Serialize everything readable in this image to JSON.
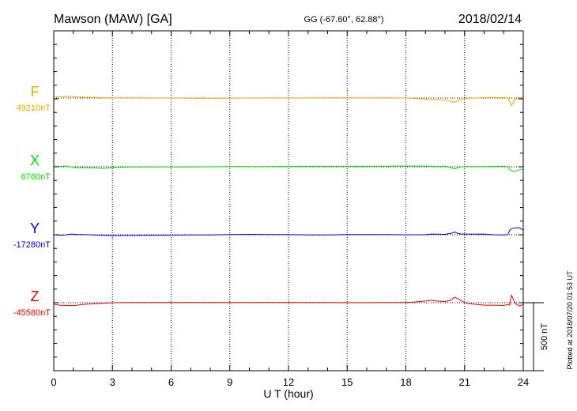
{
  "header": {
    "station": "Mawson (MAW)  [GA]",
    "coords": "GG (-67.60°,  62.88°)",
    "date": "2018/02/14"
  },
  "footer": {
    "plotted_note": "Plotted at 2018/07/20 01:53 UT"
  },
  "scale_label": "500 nT",
  "colors": {
    "F": "#f0a800",
    "X": "#00d800",
    "Y": "#0000d0",
    "Z": "#e00000",
    "axis": "#000000"
  },
  "chart_data": {
    "type": "line",
    "xlabel": "U T (hour)",
    "xlim": [
      0,
      24
    ],
    "x_ticks": [
      "0",
      "3",
      "6",
      "9",
      "12",
      "15",
      "18",
      "21",
      "24"
    ],
    "panel_offset_nT": 500,
    "scale_bar_nT": 500,
    "series": [
      {
        "key": "F",
        "name": "F",
        "baseline": "49210nT",
        "x": [
          0,
          0.3,
          0.6,
          0.9,
          1.2,
          1.5,
          2,
          2.5,
          3,
          4,
          5,
          6,
          7,
          7.5,
          8,
          9,
          10,
          11,
          12,
          13,
          14,
          15,
          16,
          17,
          18,
          18.5,
          19,
          19.3,
          19.6,
          20,
          20.3,
          20.5,
          20.6,
          20.8,
          21,
          21.3,
          21.6,
          22,
          22.5,
          23,
          23.2,
          23.3,
          23.4,
          23.6,
          23.8,
          24
        ],
        "values": [
          45,
          50,
          48,
          60,
          30,
          35,
          20,
          10,
          6,
          6,
          4,
          0,
          -8,
          -12,
          -5,
          -5,
          3,
          3,
          3,
          3,
          5,
          5,
          4,
          5,
          0,
          -15,
          -40,
          -60,
          -50,
          -80,
          -120,
          -150,
          -120,
          -60,
          -20,
          -10,
          0,
          15,
          16,
          15,
          0,
          -120,
          -280,
          -30,
          20,
          0
        ]
      },
      {
        "key": "X",
        "name": "X",
        "baseline": "6760nT",
        "x": [
          0,
          0.3,
          0.6,
          0.9,
          1.2,
          1.5,
          2,
          2.5,
          3,
          4,
          5,
          6,
          7,
          8,
          9,
          10,
          11,
          12,
          13,
          14,
          15,
          16,
          17,
          18,
          18.5,
          19,
          19.3,
          19.6,
          20,
          20.3,
          20.5,
          20.6,
          20.8,
          21,
          21.5,
          22,
          23,
          23.2,
          23.3,
          23.4,
          23.6,
          23.8,
          24
        ],
        "values": [
          20,
          15,
          30,
          -10,
          -40,
          -30,
          -35,
          -60,
          -30,
          -10,
          -5,
          -8,
          -6,
          0,
          5,
          10,
          10,
          12,
          15,
          18,
          18,
          18,
          20,
          25,
          25,
          25,
          20,
          10,
          20,
          -40,
          -80,
          -40,
          -10,
          5,
          10,
          10,
          20,
          5,
          -100,
          -150,
          -160,
          -110,
          -80
        ]
      },
      {
        "key": "Y",
        "name": "Y",
        "baseline": "-17280nT",
        "x": [
          0,
          0.3,
          0.6,
          0.9,
          1.2,
          1.5,
          2,
          3,
          4,
          5,
          6,
          7,
          8,
          9,
          10,
          11,
          12,
          13,
          14,
          15,
          16,
          17,
          18,
          19,
          19.3,
          19.6,
          20,
          20.3,
          20.5,
          20.6,
          20.8,
          21,
          21.5,
          22,
          22.5,
          23,
          23.2,
          23.3,
          23.4,
          23.6,
          23.8,
          24
        ],
        "values": [
          5,
          -20,
          -10,
          25,
          5,
          10,
          -10,
          -30,
          -25,
          -20,
          -15,
          -10,
          -5,
          10,
          15,
          10,
          5,
          -5,
          -5,
          5,
          5,
          5,
          0,
          0,
          25,
          20,
          15,
          50,
          100,
          60,
          30,
          25,
          20,
          25,
          0,
          -10,
          0,
          150,
          220,
          250,
          260,
          170
        ]
      },
      {
        "key": "Z",
        "name": "Z",
        "baseline": "-45580nT",
        "x": [
          0,
          0.3,
          0.6,
          0.9,
          1.2,
          1.5,
          2,
          2.5,
          3,
          4,
          5,
          6,
          7,
          8,
          9,
          10,
          11,
          12,
          13,
          14,
          15,
          16,
          17,
          18,
          18.5,
          19,
          19.3,
          19.6,
          20,
          20.3,
          20.5,
          20.6,
          20.8,
          21,
          21.3,
          21.6,
          22,
          22.5,
          23,
          23.2,
          23.3,
          23.4,
          23.6,
          23.8,
          24
        ],
        "values": [
          -50,
          -90,
          -100,
          -110,
          -90,
          -60,
          -40,
          -20,
          0,
          5,
          5,
          6,
          6,
          8,
          10,
          8,
          8,
          8,
          5,
          5,
          3,
          3,
          5,
          10,
          30,
          60,
          90,
          60,
          40,
          90,
          200,
          170,
          100,
          0,
          -40,
          -60,
          -90,
          -90,
          -100,
          -70,
          -90,
          280,
          -40,
          -120,
          -60
        ]
      }
    ]
  }
}
